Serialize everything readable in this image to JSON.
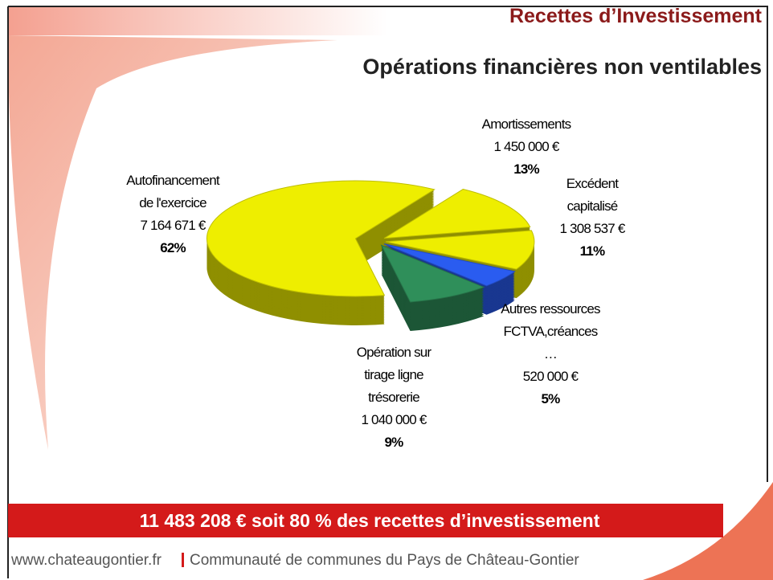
{
  "header": {
    "title": "Recettes d’Investissement",
    "subtitle": "Opérations financières non ventilables"
  },
  "chart_data": {
    "type": "pie",
    "categories": [
      [
        "Amortissements"
      ],
      [
        "Excédent",
        "capitalisé"
      ],
      [
        "Autres ressources",
        "FCTVA,créances",
        "…"
      ],
      [
        "Opération sur",
        "tirage ligne",
        "trésorerie"
      ],
      [
        "Autofinancement",
        "de l'exercice"
      ]
    ],
    "amount_labels": [
      "1 450 000 €",
      "1 308 537 €",
      "520 000 €",
      "1 040 000 €",
      "7 164 671 €"
    ],
    "values": [
      13,
      11,
      5,
      9,
      62
    ],
    "value_labels": [
      "13%",
      "11%",
      "5%",
      "9%",
      "62%"
    ],
    "colors": [
      "#eeee00",
      "#eeee00",
      "#2a5cf0",
      "#2f8f5a",
      "#eeee00"
    ]
  },
  "banner": "11 483 208 €  soit  80 % des recettes d’investissement",
  "footer": {
    "site": "www.chateaugontier.fr",
    "org": "Communauté de communes du Pays de Château-Gontier"
  }
}
